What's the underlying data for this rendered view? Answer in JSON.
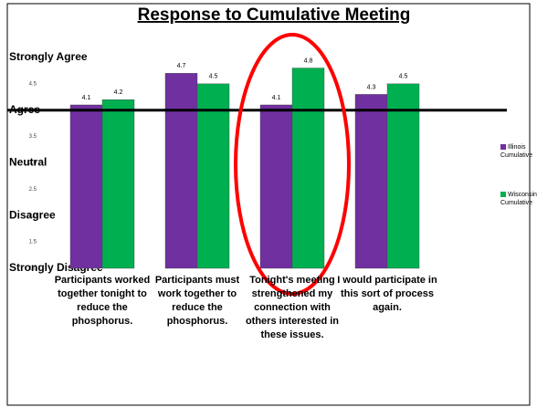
{
  "chart_data": {
    "type": "bar",
    "title": "Response to Cumulative Meeting",
    "categories": [
      "Participants worked together tonight to reduce the phosphorus.",
      "Participants must work together to reduce the phosphorus.",
      "Tonight's meeting strengthened my connection with others interested in these issues.",
      "I would participate in this sort of process again."
    ],
    "series": [
      {
        "name": "Illinois Cumulative",
        "color": "#7030a0",
        "values": [
          4.1,
          4.7,
          4.1,
          4.3
        ]
      },
      {
        "name": "Wisconsin Cumulative",
        "color": "#00b050",
        "values": [
          4.2,
          4.5,
          4.8,
          4.5
        ]
      }
    ],
    "ylim": [
      1,
      5
    ],
    "yticks": [
      {
        "value": 1,
        "label": "1.0"
      },
      1.5,
      {
        "value": 2,
        "label": "2.0"
      },
      2.5,
      {
        "value": 3,
        "label": "3.0"
      },
      3.5,
      {
        "value": 4,
        "label": "4.0"
      },
      4.5,
      {
        "value": 5,
        "label": "5.0"
      }
    ],
    "levels": [
      {
        "value": 5,
        "label": "Strongly Agree"
      },
      {
        "value": 4,
        "label": "Agree"
      },
      {
        "value": 3,
        "label": "Neutral"
      },
      {
        "value": 2,
        "label": "Disagree"
      },
      {
        "value": 1,
        "label": "Strongly Disagree"
      }
    ],
    "reference_line": 4,
    "legend": "right"
  }
}
